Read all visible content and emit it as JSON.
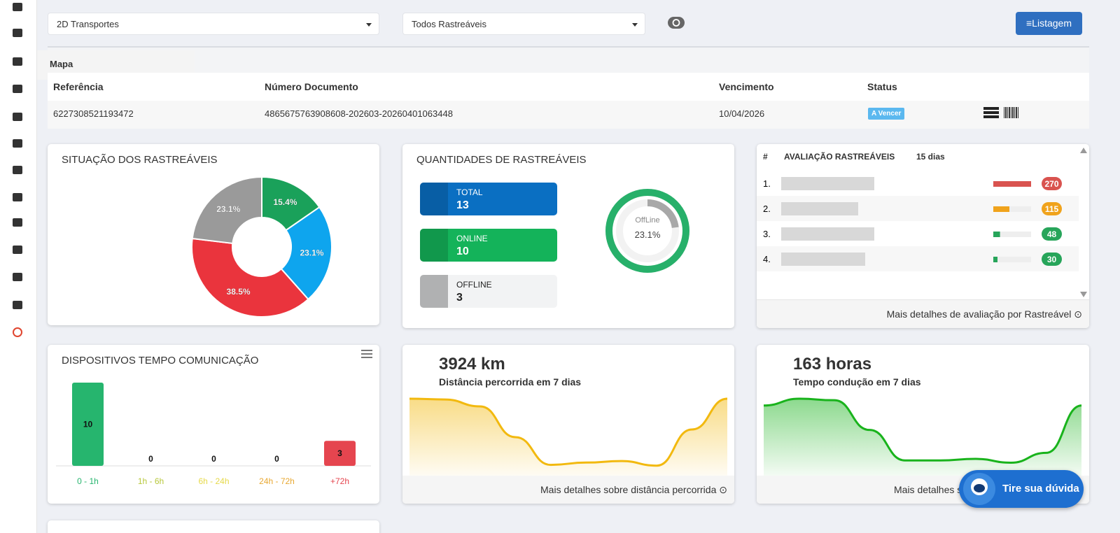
{
  "toolbar": {
    "company": "2D Transportes",
    "tracker": "Todos Rastreáveis",
    "button": "Listagem"
  },
  "sidebar": {
    "tooltip": "Mapa"
  },
  "table": {
    "headers": [
      "Referência",
      "Número Documento",
      "Vencimento",
      "Status"
    ],
    "rows": [
      [
        "6227308521193472",
        "4865675763908608-202603-20260401063448",
        "10/04/2026",
        "A Vencer"
      ]
    ]
  },
  "situacao": {
    "title": "SITUAÇÃO DOS RASTREÁVEIS",
    "chart_data": {
      "type": "pie",
      "values": [
        15.4,
        23.1,
        38.5,
        23.1
      ],
      "value_labels": [
        "15.4%",
        "23.1%",
        "38.5%",
        "23.1%"
      ],
      "colors": [
        "#1aa15a",
        "#0ea5ee",
        "#ea343d",
        "#9a9a9a"
      ]
    }
  },
  "quantidades": {
    "title": "QUANTIDADES DE RASTREÁVEIS",
    "items": [
      {
        "label": "TOTAL",
        "value": "13",
        "color": "#0a6fc2"
      },
      {
        "label": "ONLINE",
        "value": "10",
        "color": "#14b35a"
      },
      {
        "label": "OFFLINE",
        "value": "3",
        "color": "#cfd0d2"
      }
    ],
    "gauge": {
      "label": "OffLine",
      "value": 23.1,
      "value_label": "23.1%"
    }
  },
  "avaliacao": {
    "headers": [
      "#",
      "AVALIAÇÃO RASTREÁVEIS",
      "15 dias"
    ],
    "chart_data": {
      "type": "bar",
      "categories": [
        "1.",
        "2.",
        "3.",
        "4."
      ],
      "values": [
        270,
        115,
        48,
        30
      ],
      "colors": [
        "#d9534f",
        "#f0a31c",
        "#27a55a",
        "#27a55a"
      ]
    },
    "footer": "Mais detalhes de avaliação por Rastreável"
  },
  "dispositivos": {
    "title": "DISPOSITIVOS TEMPO COMUNICAÇÃO",
    "chart_data": {
      "type": "bar",
      "categories": [
        "0 - 1h",
        "1h - 6h",
        "6h - 24h",
        "24h - 72h",
        "+72h"
      ],
      "values": [
        10,
        0,
        0,
        0,
        3
      ],
      "colors": [
        "#26b56e",
        "#b8c83c",
        "#e6d94a",
        "#e8a832",
        "#e5454f"
      ]
    }
  },
  "distancia": {
    "value": "3924 km",
    "subtitle": "Distância percorrida em 7 dias",
    "footer": "Mais detalhes sobre distância percorrida",
    "chart_data": {
      "type": "area",
      "color": "#f2b90f",
      "values": [
        100,
        99,
        90,
        50,
        14,
        17,
        19,
        13,
        60,
        100
      ]
    }
  },
  "horas": {
    "value": "163 horas",
    "subtitle": "Tempo condução em 7 dias",
    "footer": "Mais detalhes s",
    "chart_data": {
      "type": "area",
      "color": "#19b31c",
      "values": [
        92,
        101,
        99,
        60,
        20,
        20,
        22,
        17,
        30,
        92
      ]
    }
  },
  "help": "Tire sua dúvida"
}
